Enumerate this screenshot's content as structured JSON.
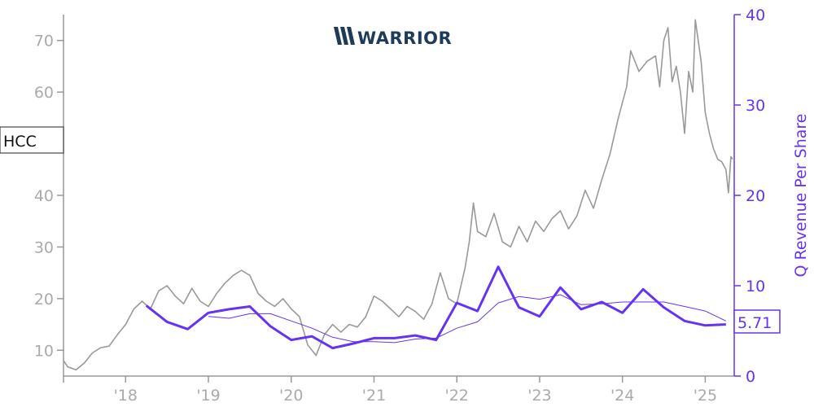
{
  "ticker": "HCC",
  "logo_text": "WARRIOR",
  "last_value_label": "5.71",
  "colors": {
    "price": "#999999",
    "revenue": "#6633ee",
    "revenue_avg": "#6633ee",
    "logo": "#1f3b57",
    "axis": "#999999"
  },
  "icons": [
    "warrior-logo-icon"
  ],
  "chart_data": {
    "type": "line",
    "title": "",
    "xlabel": "",
    "ylabel_right": "Q Revenue Per Share",
    "x_tick_labels": [
      "'18",
      "'19",
      "'20",
      "'21",
      "'22",
      "'23",
      "'24",
      "'25"
    ],
    "x_ticks": [
      2018.0,
      2019.0,
      2020.0,
      2021.0,
      2022.0,
      2023.0,
      2024.0,
      2025.0
    ],
    "xlim": [
      2017.25,
      2025.35
    ],
    "left_axis": {
      "ylim": [
        5,
        75
      ],
      "ticks": [
        10,
        20,
        30,
        40,
        50,
        60,
        70
      ],
      "tick_labels": [
        "10",
        "20",
        "30",
        "40",
        "",
        "60",
        "70"
      ]
    },
    "right_axis": {
      "ylim": [
        0,
        40
      ],
      "ticks": [
        0,
        10,
        20,
        30,
        40
      ],
      "tick_labels": [
        "0",
        "10",
        "20",
        "30",
        "40"
      ]
    },
    "series": [
      {
        "axis": "left",
        "style": "thin-gray",
        "points": [
          [
            2017.25,
            8.0
          ],
          [
            2017.3,
            6.8
          ],
          [
            2017.4,
            6.2
          ],
          [
            2017.5,
            7.5
          ],
          [
            2017.6,
            9.5
          ],
          [
            2017.7,
            10.5
          ],
          [
            2017.8,
            10.8
          ],
          [
            2017.9,
            13.0
          ],
          [
            2018.0,
            15.0
          ],
          [
            2018.1,
            18.0
          ],
          [
            2018.2,
            19.5
          ],
          [
            2018.3,
            18.0
          ],
          [
            2018.4,
            21.5
          ],
          [
            2018.5,
            22.5
          ],
          [
            2018.6,
            20.5
          ],
          [
            2018.7,
            19.0
          ],
          [
            2018.8,
            22.0
          ],
          [
            2018.9,
            19.5
          ],
          [
            2019.0,
            18.5
          ],
          [
            2019.1,
            21.0
          ],
          [
            2019.2,
            23.0
          ],
          [
            2019.3,
            24.5
          ],
          [
            2019.4,
            25.5
          ],
          [
            2019.5,
            24.5
          ],
          [
            2019.6,
            21.0
          ],
          [
            2019.7,
            19.5
          ],
          [
            2019.8,
            18.5
          ],
          [
            2019.9,
            20.0
          ],
          [
            2020.0,
            18.0
          ],
          [
            2020.1,
            16.5
          ],
          [
            2020.2,
            11.0
          ],
          [
            2020.3,
            9.0
          ],
          [
            2020.4,
            13.0
          ],
          [
            2020.5,
            15.0
          ],
          [
            2020.6,
            13.5
          ],
          [
            2020.7,
            15.0
          ],
          [
            2020.8,
            14.5
          ],
          [
            2020.9,
            16.5
          ],
          [
            2021.0,
            20.5
          ],
          [
            2021.1,
            19.5
          ],
          [
            2021.2,
            18.0
          ],
          [
            2021.3,
            16.5
          ],
          [
            2021.4,
            18.5
          ],
          [
            2021.5,
            17.5
          ],
          [
            2021.6,
            16.0
          ],
          [
            2021.7,
            19.0
          ],
          [
            2021.8,
            25.0
          ],
          [
            2021.9,
            20.0
          ],
          [
            2022.0,
            19.0
          ],
          [
            2022.1,
            26.0
          ],
          [
            2022.15,
            31.0
          ],
          [
            2022.2,
            38.5
          ],
          [
            2022.25,
            33.0
          ],
          [
            2022.35,
            32.0
          ],
          [
            2022.45,
            36.5
          ],
          [
            2022.55,
            31.0
          ],
          [
            2022.65,
            30.0
          ],
          [
            2022.75,
            34.0
          ],
          [
            2022.85,
            31.0
          ],
          [
            2022.95,
            35.0
          ],
          [
            2023.05,
            33.0
          ],
          [
            2023.15,
            35.5
          ],
          [
            2023.25,
            37.0
          ],
          [
            2023.35,
            33.5
          ],
          [
            2023.45,
            36.0
          ],
          [
            2023.55,
            41.0
          ],
          [
            2023.65,
            37.5
          ],
          [
            2023.75,
            43.0
          ],
          [
            2023.85,
            48.0
          ],
          [
            2023.95,
            55.0
          ],
          [
            2024.05,
            61.0
          ],
          [
            2024.1,
            68.0
          ],
          [
            2024.2,
            64.0
          ],
          [
            2024.3,
            66.0
          ],
          [
            2024.4,
            67.0
          ],
          [
            2024.45,
            61.0
          ],
          [
            2024.5,
            70.0
          ],
          [
            2024.55,
            72.5
          ],
          [
            2024.6,
            62.0
          ],
          [
            2024.65,
            65.0
          ],
          [
            2024.7,
            60.0
          ],
          [
            2024.75,
            52.0
          ],
          [
            2024.8,
            64.0
          ],
          [
            2024.85,
            60.0
          ],
          [
            2024.88,
            74.0
          ],
          [
            2024.95,
            66.0
          ],
          [
            2025.0,
            56.0
          ],
          [
            2025.05,
            52.0
          ],
          [
            2025.1,
            49.0
          ],
          [
            2025.15,
            47.0
          ],
          [
            2025.2,
            46.5
          ],
          [
            2025.25,
            45.0
          ],
          [
            2025.28,
            40.5
          ],
          [
            2025.31,
            47.5
          ],
          [
            2025.33,
            47.0
          ]
        ]
      },
      {
        "axis": "right",
        "style": "thick-purple",
        "points": [
          [
            2018.25,
            7.8
          ],
          [
            2018.5,
            6.0
          ],
          [
            2018.75,
            5.2
          ],
          [
            2019.0,
            7.0
          ],
          [
            2019.25,
            7.4
          ],
          [
            2019.5,
            7.7
          ],
          [
            2019.75,
            5.5
          ],
          [
            2020.0,
            4.0
          ],
          [
            2020.25,
            4.4
          ],
          [
            2020.5,
            3.1
          ],
          [
            2020.75,
            3.6
          ],
          [
            2021.0,
            4.2
          ],
          [
            2021.25,
            4.2
          ],
          [
            2021.5,
            4.5
          ],
          [
            2021.75,
            4.0
          ],
          [
            2022.0,
            8.1
          ],
          [
            2022.25,
            7.2
          ],
          [
            2022.5,
            12.1
          ],
          [
            2022.75,
            7.6
          ],
          [
            2023.0,
            6.6
          ],
          [
            2023.25,
            9.8
          ],
          [
            2023.5,
            7.4
          ],
          [
            2023.75,
            8.2
          ],
          [
            2024.0,
            7.0
          ],
          [
            2024.25,
            9.6
          ],
          [
            2024.5,
            7.6
          ],
          [
            2024.75,
            6.1
          ],
          [
            2025.0,
            5.6
          ],
          [
            2025.25,
            5.71
          ]
        ]
      },
      {
        "axis": "right",
        "style": "thin-purple",
        "points": [
          [
            2019.0,
            6.6
          ],
          [
            2019.25,
            6.4
          ],
          [
            2019.5,
            6.9
          ],
          [
            2019.75,
            6.9
          ],
          [
            2020.0,
            6.1
          ],
          [
            2020.25,
            5.3
          ],
          [
            2020.5,
            4.3
          ],
          [
            2020.75,
            3.8
          ],
          [
            2021.0,
            3.8
          ],
          [
            2021.25,
            3.7
          ],
          [
            2021.5,
            4.1
          ],
          [
            2021.75,
            4.2
          ],
          [
            2022.0,
            5.3
          ],
          [
            2022.25,
            6.0
          ],
          [
            2022.5,
            8.1
          ],
          [
            2022.75,
            8.8
          ],
          [
            2023.0,
            8.5
          ],
          [
            2023.25,
            9.0
          ],
          [
            2023.5,
            7.9
          ],
          [
            2023.75,
            8.0
          ],
          [
            2024.0,
            8.2
          ],
          [
            2024.25,
            8.2
          ],
          [
            2024.5,
            8.2
          ],
          [
            2024.75,
            7.7
          ],
          [
            2025.0,
            7.2
          ],
          [
            2025.25,
            6.1
          ]
        ]
      }
    ]
  }
}
